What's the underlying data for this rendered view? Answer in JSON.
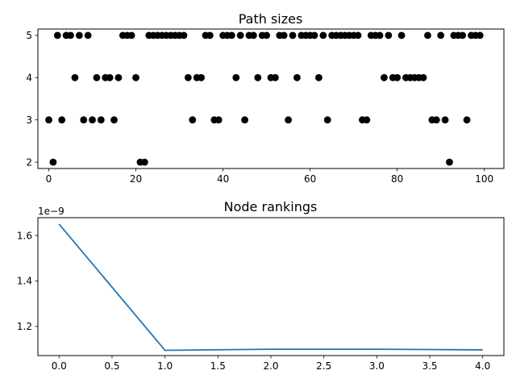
{
  "chart_data": [
    {
      "type": "scatter",
      "title": "Path sizes",
      "xlabel": "",
      "ylabel": "",
      "xlim": [
        -2.5,
        104.5
      ],
      "ylim": [
        1.85,
        5.15
      ],
      "xticks": [
        "0",
        "20",
        "40",
        "60",
        "80",
        "100"
      ],
      "yticks": [
        "2",
        "3",
        "4",
        "5"
      ],
      "marker_color": "#000000",
      "grid": false,
      "x": [
        0,
        1,
        2,
        3,
        4,
        5,
        6,
        7,
        8,
        9,
        10,
        11,
        12,
        13,
        14,
        15,
        16,
        17,
        18,
        19,
        20,
        21,
        22,
        23,
        24,
        25,
        26,
        27,
        28,
        29,
        30,
        31,
        32,
        33,
        34,
        35,
        36,
        37,
        38,
        39,
        40,
        41,
        42,
        43,
        44,
        45,
        46,
        47,
        48,
        49,
        50,
        51,
        52,
        53,
        54,
        55,
        56,
        57,
        58,
        59,
        60,
        61,
        62,
        63,
        64,
        65,
        66,
        67,
        68,
        69,
        70,
        71,
        72,
        73,
        74,
        75,
        76,
        77,
        78,
        79,
        80,
        81,
        82,
        83,
        84,
        85,
        86,
        87,
        88,
        89,
        90,
        91,
        92,
        93,
        94,
        95,
        96,
        97,
        98,
        99
      ],
      "y": [
        3,
        2,
        5,
        3,
        5,
        5,
        4,
        5,
        3,
        5,
        3,
        4,
        3,
        4,
        4,
        3,
        4,
        5,
        5,
        5,
        4,
        2,
        2,
        5,
        5,
        5,
        5,
        5,
        5,
        5,
        5,
        5,
        4,
        3,
        4,
        4,
        5,
        5,
        3,
        3,
        5,
        5,
        5,
        4,
        5,
        3,
        5,
        5,
        4,
        5,
        5,
        4,
        4,
        5,
        5,
        3,
        5,
        4,
        5,
        5,
        5,
        5,
        4,
        5,
        3,
        5,
        5,
        5,
        5,
        5,
        5,
        5,
        3,
        3,
        5,
        5,
        5,
        4,
        5,
        4,
        4,
        5,
        4,
        4,
        4,
        4,
        4,
        5,
        3,
        3,
        5,
        3,
        2,
        5,
        5,
        5,
        3,
        5,
        5,
        5
      ]
    },
    {
      "type": "line",
      "title": "Node rankings",
      "xlabel": "",
      "ylabel": "",
      "offset_text": "1e−9",
      "xlim": [
        -0.2,
        4.2
      ],
      "ylim": [
        1.072,
        1.678
      ],
      "xticks": [
        "0.0",
        "0.5",
        "1.0",
        "1.5",
        "2.0",
        "2.5",
        "3.0",
        "3.5",
        "4.0"
      ],
      "yticks": [
        "1.2",
        "1.4",
        "1.6"
      ],
      "line_color": "#1f77b4",
      "grid": false,
      "x": [
        0,
        1,
        2,
        3,
        4
      ],
      "y": [
        1.65,
        1.095,
        1.1,
        1.1,
        1.097
      ]
    }
  ]
}
